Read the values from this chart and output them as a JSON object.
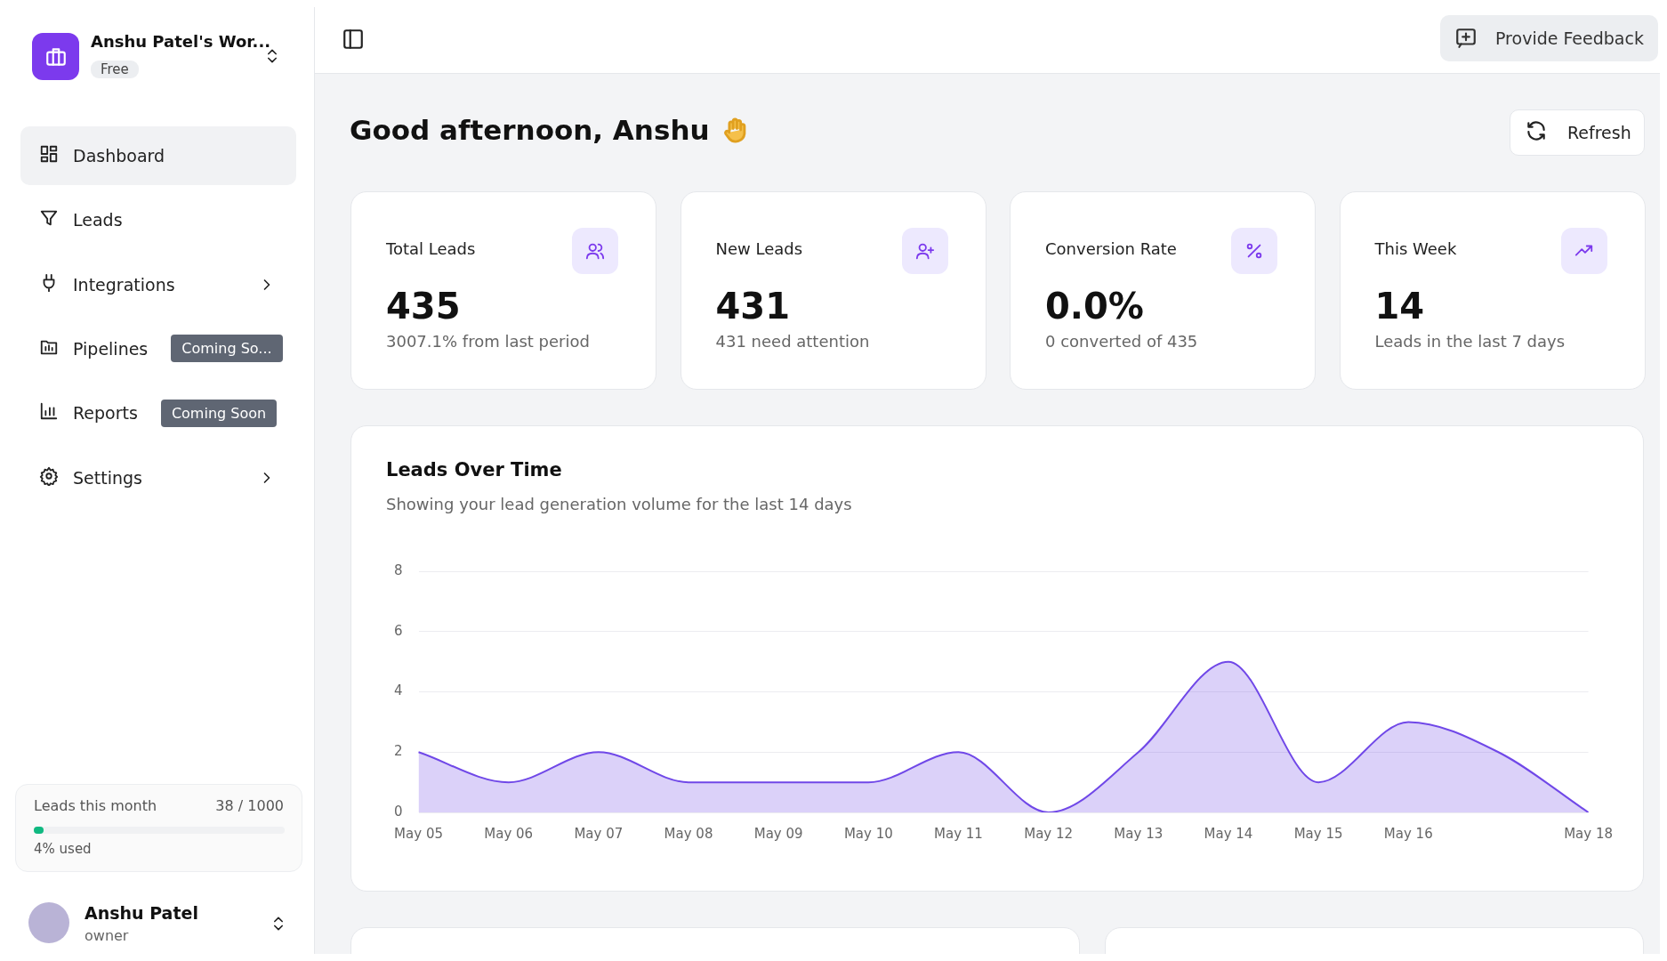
{
  "chart_data": [
    {
      "type": "other",
      "title": "Good afternoon, Anshu",
      "annotations": [
        "Anshu Patel's Wor...",
        "Free",
        "Dashboard",
        "Leads",
        "Integrations",
        "Pipelines",
        "Coming So...",
        "Reports",
        "Coming Soon",
        "Settings",
        "Leads this month",
        "38 / 1000",
        "4% used",
        "Anshu Patel",
        "owner",
        "Provide Feedback",
        "Refresh"
      ]
    },
    {
      "type": "other",
      "title": "Total Leads",
      "annotations": [
        "435",
        "3007.1% from last period"
      ]
    },
    {
      "type": "other",
      "title": "New Leads",
      "annotations": [
        "431",
        "431 need attention"
      ]
    },
    {
      "type": "other",
      "title": "Conversion Rate",
      "annotations": [
        "0.0%",
        "0 converted of 435"
      ]
    },
    {
      "type": "other",
      "title": "This Week",
      "annotations": [
        "14",
        "Leads in the last 7 days"
      ]
    },
    {
      "type": "area",
      "title": "Leads Over Time",
      "subtitle": "Showing your lead generation volume for the last 14 days",
      "categories": [
        "May 05",
        "May 06",
        "May 07",
        "May 08",
        "May 09",
        "May 10",
        "May 11",
        "May 12",
        "May 13",
        "May 14",
        "May 15",
        "May 16",
        null,
        "May 18"
      ],
      "series": [
        {
          "color": "#7048e8",
          "values": [
            2,
            1,
            2,
            1,
            1,
            1,
            2,
            0,
            2,
            5,
            1,
            3,
            2,
            0
          ]
        }
      ],
      "ylim": [
        0,
        8
      ],
      "yticks": [
        0,
        2,
        4,
        6,
        8
      ],
      "grid": "y"
    }
  ]
}
